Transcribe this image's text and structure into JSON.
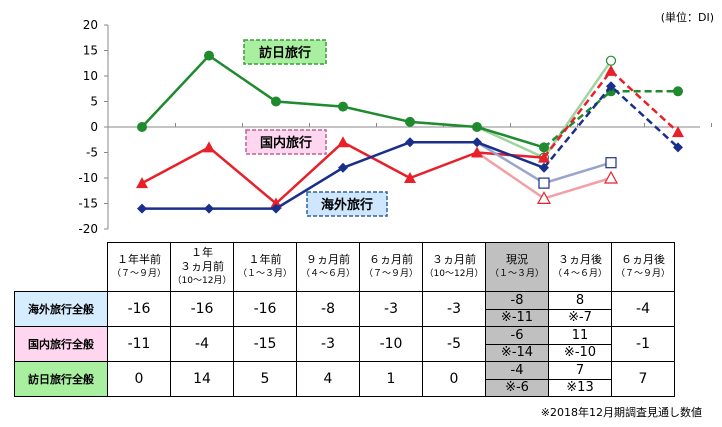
{
  "unit_label": "(単位：DI)",
  "note": "※2018年12月期調査見通し数値",
  "chart_data": {
    "type": "line",
    "ylim": [
      -20,
      20
    ],
    "yticks": [
      "20",
      "15",
      "10",
      "5",
      "0",
      "-5",
      "-10",
      "-15",
      "-20"
    ],
    "categories": [
      "1年半前",
      "1年3ヵ月前",
      "1年前",
      "9ヵ月前",
      "6ヵ月前",
      "3ヵ月前",
      "現況",
      "3ヵ月後",
      "6ヵ月後"
    ],
    "series": [
      {
        "name": "訪日旅行",
        "color": "#1f8a2e",
        "actual": [
          0,
          14,
          5,
          4,
          1,
          0,
          -4
        ],
        "forecast": [
          7,
          7
        ],
        "prev": [
          -6,
          13
        ]
      },
      {
        "name": "国内旅行",
        "color": "#e8202a",
        "actual": [
          -11,
          -4,
          -15,
          -3,
          -10,
          -5,
          -6
        ],
        "forecast": [
          11,
          -1
        ],
        "prev": [
          -14,
          -10
        ]
      },
      {
        "name": "海外旅行",
        "color": "#1a2f8a",
        "actual": [
          -16,
          -16,
          -16,
          -8,
          -3,
          -3,
          -8
        ],
        "forecast": [
          8,
          -4
        ],
        "prev": [
          -11,
          -7
        ]
      }
    ]
  },
  "table": {
    "headers": [
      {
        "main": "１年半前",
        "sub": "（７～９月）"
      },
      {
        "main": "１年\n３ヵ月前",
        "sub": "（10～12月）"
      },
      {
        "main": "１年前",
        "sub": "（１～３月）"
      },
      {
        "main": "９ヵ月前",
        "sub": "（４～６月）"
      },
      {
        "main": "６ヵ月前",
        "sub": "（７～９月）"
      },
      {
        "main": "３ヵ月前",
        "sub": "（10～12月）"
      },
      {
        "main": "現況",
        "sub": "（１～３月）"
      },
      {
        "main": "３ヵ月後",
        "sub": "（４～６月）"
      },
      {
        "main": "６ヵ月後",
        "sub": "（７～９月）"
      }
    ],
    "rows": [
      {
        "label": "海外旅行全般",
        "color": "#d6ecff",
        "vals": [
          "-16",
          "-16",
          "-16",
          "-8",
          "-3",
          "-3"
        ],
        "cur": "-8",
        "cur_prev": "※-11",
        "f1": "8",
        "f1_prev": "※-7",
        "f2": "-4"
      },
      {
        "label": "国内旅行全般",
        "color": "#ffd6f0",
        "vals": [
          "-11",
          "-4",
          "-15",
          "-3",
          "-10",
          "-5"
        ],
        "cur": "-6",
        "cur_prev": "※-14",
        "f1": "11",
        "f1_prev": "※-10",
        "f2": "-1"
      },
      {
        "label": "訪日旅行全般",
        "color": "#a8f0a0",
        "vals": [
          "0",
          "14",
          "5",
          "4",
          "1",
          "0"
        ],
        "cur": "-4",
        "cur_prev": "※-6",
        "f1": "7",
        "f1_prev": "※13",
        "f2": "7"
      }
    ]
  }
}
